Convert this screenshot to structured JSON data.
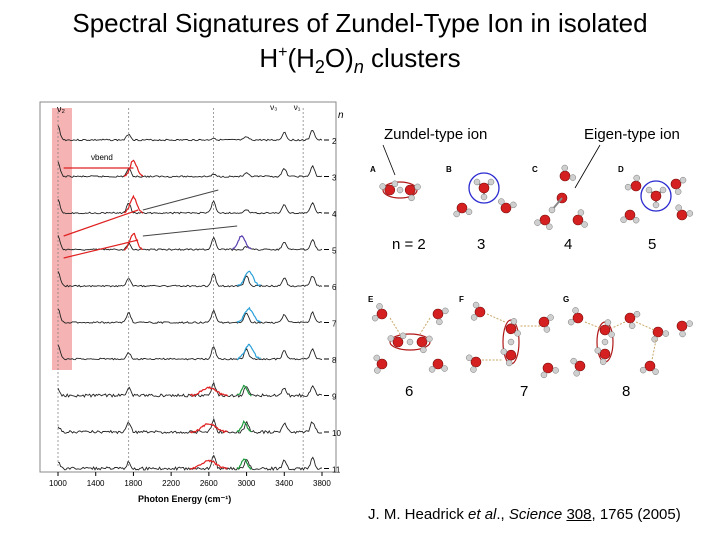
{
  "title": {
    "line1": "Spectral Signatures of Zundel-Type Ion in isolated",
    "line2_prefix": "H",
    "line2_sup": "+",
    "line2_paren_open": "(H",
    "line2_sub2": "2",
    "line2_o": "O)",
    "line2_n": "n",
    "line2_suffix": " clusters"
  },
  "labels": {
    "zundel": "Zundel-type ion",
    "eigen": "Eigen-type ion"
  },
  "cluster_numbers": [
    "n = 2",
    "3",
    "4",
    "5",
    "6",
    "7",
    "8"
  ],
  "panel_letters": [
    "A",
    "B",
    "C",
    "D",
    "E",
    "F",
    "G"
  ],
  "spectrum": {
    "n_label": "n",
    "cluster_sizes": [
      "2",
      "3",
      "4",
      "5",
      "6",
      "7",
      "8",
      "9",
      "10",
      "11"
    ],
    "x_ticks": [
      "1000",
      "1400",
      "1800",
      "2200",
      "2600",
      "3000",
      "3400",
      "3800"
    ],
    "x_label": "Photon Energy (cm⁻¹)",
    "peak_labels": [
      "ν₂",
      "ν",
      "ν",
      "ν₃",
      "ν₁"
    ],
    "bend_label": "νbend"
  },
  "citation": {
    "authors": "J. M. Headrick ",
    "etal": "et al",
    "sep": "., ",
    "journal": "Science",
    "volume": "308",
    "rest": ", 1765 (2005)"
  },
  "colors": {
    "highlight": "#f4a6a6",
    "red": "#e02020",
    "blue": "#2aa0d8",
    "purple": "#5a3fb0",
    "green": "#1a9a3a",
    "eigen_circle": "#2a2ad0"
  }
}
